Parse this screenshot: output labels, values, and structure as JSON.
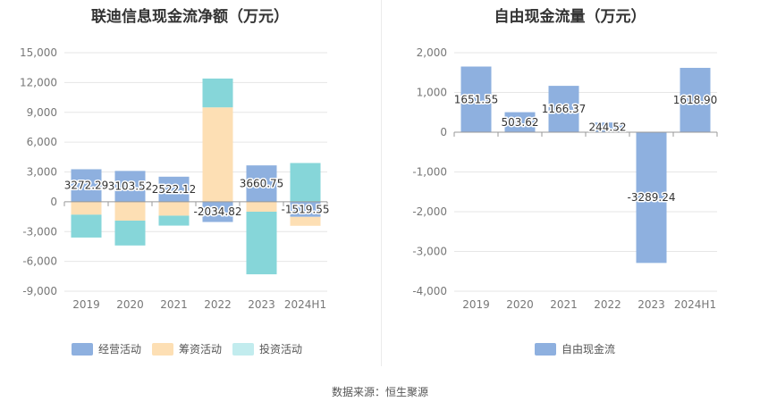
{
  "footer": {
    "source": "数据来源：恒生聚源"
  },
  "colors": {
    "operating": "#8eb0df",
    "financing": "#fddfb4",
    "investing": "#86d6d9",
    "axis": "#777777",
    "grid": "#e6e6e6"
  },
  "chart_data": [
    {
      "type": "bar",
      "stacked": true,
      "title": "联迪信息现金流净额（万元）",
      "categories": [
        "2019",
        "2020",
        "2021",
        "2022",
        "2023",
        "2024H1"
      ],
      "ylim": [
        -9000,
        15000
      ],
      "yticks": [
        15000,
        12000,
        9000,
        6000,
        3000,
        0,
        -3000,
        -6000,
        -9000
      ],
      "ytick_labels": [
        "15,000",
        "12,000",
        "9,000",
        "6,000",
        "3,000",
        "0",
        "-3,000",
        "-6,000",
        "-9,000"
      ],
      "grid": true,
      "legend_position": "bottom",
      "series": [
        {
          "name": "经营活动",
          "color": "#8eb0df",
          "values": [
            3272.29,
            3103.52,
            2522.12,
            -2034.82,
            3660.75,
            -1519.55
          ]
        },
        {
          "name": "筹资活动",
          "color": "#fddfb4",
          "values": [
            -1300,
            -1900,
            -1400,
            9500,
            -1000,
            -900
          ]
        },
        {
          "name": "投资活动",
          "color": "#86d6d9",
          "values": [
            -2300,
            -2500,
            -1000,
            2900,
            -6300,
            3900
          ]
        }
      ],
      "data_labels": [
        "3272.29",
        "3103.52",
        "2522.12",
        "-2034.82",
        "3660.75",
        "-1519.55"
      ]
    },
    {
      "type": "bar",
      "title": "自由现金流量（万元）",
      "categories": [
        "2019",
        "2020",
        "2021",
        "2022",
        "2023",
        "2024H1"
      ],
      "ylim": [
        -4000,
        2000
      ],
      "yticks": [
        2000,
        1000,
        0,
        -1000,
        -2000,
        -3000,
        -4000
      ],
      "ytick_labels": [
        "2,000",
        "1,000",
        "0",
        "-1,000",
        "-2,000",
        "-3,000",
        "-4,000"
      ],
      "grid": true,
      "legend_position": "bottom",
      "series": [
        {
          "name": "自由现金流",
          "color": "#8eb0df",
          "values": [
            1651.55,
            503.62,
            1166.37,
            244.52,
            -3289.24,
            1618.9
          ]
        }
      ],
      "data_labels": [
        "1651.55",
        "503.62",
        "1166.37",
        "244.52",
        "-3289.24",
        "1618.90"
      ]
    }
  ]
}
